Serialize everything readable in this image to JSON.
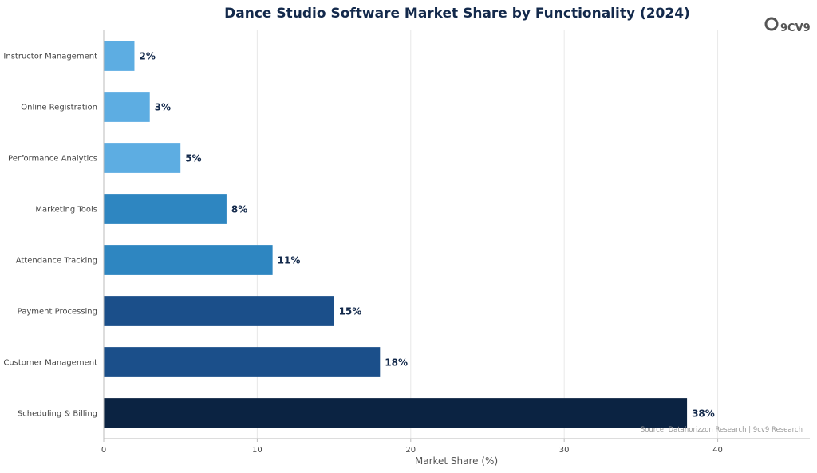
{
  "chart_data": {
    "type": "bar",
    "orientation": "horizontal",
    "title": "Dance Studio Software Market Share by Functionality (2024)",
    "xlabel": "Market Share (%)",
    "ylabel": "",
    "xlim": [
      0,
      46
    ],
    "xticks": [
      0,
      10,
      20,
      30,
      40
    ],
    "grid": "vertical",
    "categories": [
      "Instructor Management",
      "Online Registration",
      "Performance Analytics",
      "Marketing Tools",
      "Attendance Tracking",
      "Payment Processing",
      "Customer Management",
      "Scheduling & Billing"
    ],
    "values": [
      2,
      3,
      5,
      8,
      11,
      15,
      18,
      38
    ],
    "value_labels": [
      "2%",
      "3%",
      "5%",
      "8%",
      "11%",
      "15%",
      "18%",
      "38%"
    ],
    "colors": [
      "#5dade2",
      "#5dade2",
      "#5dade2",
      "#2e86c1",
      "#2e86c1",
      "#1b4f8a",
      "#1b4f8a",
      "#0b2342"
    ],
    "source": "Source: Datahorizzon Research | 9cv9 Research"
  },
  "brand": {
    "logo_text": "9CV9",
    "logo_color": "#555555"
  }
}
